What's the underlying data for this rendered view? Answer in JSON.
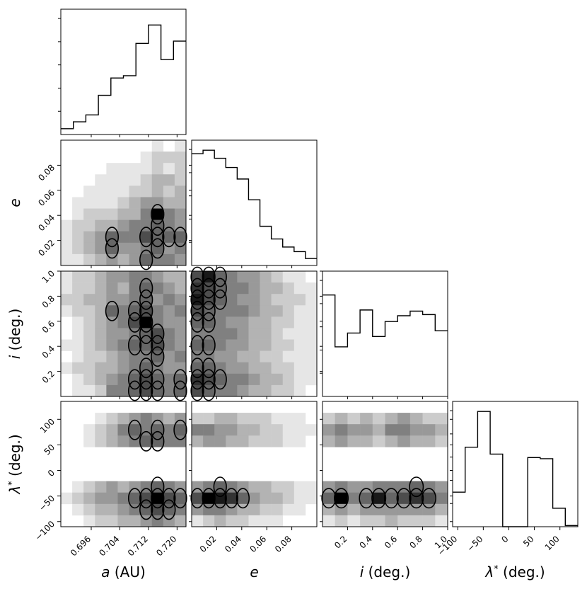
{
  "chart_data": {
    "type": "corner",
    "variables": [
      {
        "key": "a",
        "label_symbol": "a",
        "label_unit": "(AU)",
        "range": [
          0.6875,
          0.7225
        ],
        "ticks": [
          0.696,
          0.704,
          0.712,
          0.72
        ],
        "tick_labels": [
          "0.696",
          "0.704",
          "0.712",
          "0.720"
        ]
      },
      {
        "key": "e",
        "label_symbol": "e",
        "label_unit": "",
        "range": [
          0.0,
          0.1
        ],
        "ticks": [
          0.02,
          0.04,
          0.06,
          0.08
        ],
        "tick_labels": [
          "0.02",
          "0.04",
          "0.06",
          "0.08"
        ]
      },
      {
        "key": "i",
        "label_symbol": "i",
        "label_unit": "(deg.)",
        "range": [
          0.0,
          1.0
        ],
        "ticks": [
          0.2,
          0.4,
          0.6,
          0.8,
          1.0
        ],
        "tick_labels": [
          "0.2",
          "0.4",
          "0.6",
          "0.8",
          "1.0"
        ]
      },
      {
        "key": "lambda",
        "label_symbol": "λ",
        "label_sup": "*",
        "label_unit": "(deg.)",
        "range": [
          -110,
          135
        ],
        "ticks": [
          -100,
          -50,
          0,
          50,
          100
        ],
        "tick_labels": [
          "−100",
          "−50",
          "0",
          "50",
          "100"
        ]
      }
    ],
    "histograms": {
      "a": [
        0.05,
        0.11,
        0.17,
        0.34,
        0.49,
        0.51,
        0.79,
        0.95,
        0.65,
        0.81
      ],
      "e": [
        0.97,
        1.0,
        0.93,
        0.85,
        0.75,
        0.57,
        0.34,
        0.23,
        0.16,
        0.12,
        0.06
      ],
      "i": [
        0.88,
        0.43,
        0.55,
        0.75,
        0.52,
        0.65,
        0.7,
        0.74,
        0.71,
        0.57
      ],
      "lambda": [
        0.3,
        0.69,
        1.0,
        0.63,
        0.0,
        0.0,
        0.6,
        0.59,
        0.16,
        0.01
      ]
    },
    "density_panels": [
      {
        "x": "a",
        "y": "e",
        "nx": 11,
        "ny": 11,
        "density": [
          [
            0.0,
            0.0,
            0.0,
            0.0,
            0.0,
            0.0,
            0.0,
            0.0,
            0.1,
            0.0,
            0.1
          ],
          [
            0.0,
            0.0,
            0.0,
            0.0,
            0.0,
            0.0,
            0.0,
            0.1,
            0.2,
            0.2,
            0.2
          ],
          [
            0.0,
            0.0,
            0.0,
            0.0,
            0.1,
            0.1,
            0.1,
            0.1,
            0.2,
            0.1,
            0.2
          ],
          [
            0.0,
            0.0,
            0.0,
            0.1,
            0.1,
            0.1,
            0.1,
            0.2,
            0.3,
            0.3,
            0.2
          ],
          [
            0.0,
            0.0,
            0.1,
            0.1,
            0.1,
            0.1,
            0.2,
            0.2,
            0.3,
            0.2,
            0.3
          ],
          [
            0.0,
            0.1,
            0.1,
            0.1,
            0.1,
            0.2,
            0.3,
            0.4,
            0.4,
            0.3,
            0.3
          ],
          [
            0.0,
            0.1,
            0.2,
            0.2,
            0.2,
            0.3,
            0.3,
            0.5,
            1.0,
            0.5,
            0.4
          ],
          [
            0.1,
            0.2,
            0.2,
            0.3,
            0.3,
            0.4,
            0.5,
            0.5,
            0.6,
            0.5,
            0.4
          ],
          [
            0.1,
            0.2,
            0.3,
            0.4,
            0.6,
            0.5,
            0.5,
            0.7,
            0.6,
            0.6,
            0.6
          ],
          [
            0.1,
            0.2,
            0.3,
            0.4,
            0.6,
            0.4,
            0.4,
            0.5,
            0.6,
            0.4,
            0.5
          ],
          [
            0.1,
            0.1,
            0.2,
            0.3,
            0.4,
            0.3,
            0.4,
            0.6,
            0.5,
            0.5,
            0.4
          ]
        ]
      },
      {
        "x": "a",
        "y": "i",
        "nx": 11,
        "ny": 11,
        "density": [
          [
            0.1,
            0.2,
            0.2,
            0.3,
            0.4,
            0.4,
            0.5,
            0.5,
            0.4,
            0.3,
            0.3
          ],
          [
            0.1,
            0.2,
            0.2,
            0.3,
            0.4,
            0.3,
            0.5,
            0.6,
            0.5,
            0.4,
            0.3
          ],
          [
            0.2,
            0.2,
            0.3,
            0.3,
            0.4,
            0.4,
            0.5,
            0.6,
            0.4,
            0.5,
            0.4
          ],
          [
            0.1,
            0.2,
            0.2,
            0.3,
            0.6,
            0.5,
            0.6,
            0.7,
            0.5,
            0.4,
            0.5
          ],
          [
            0.0,
            0.1,
            0.2,
            0.3,
            0.4,
            0.5,
            0.7,
            1.0,
            0.5,
            0.4,
            0.4
          ],
          [
            0.0,
            0.1,
            0.2,
            0.3,
            0.4,
            0.4,
            0.5,
            0.6,
            0.7,
            0.5,
            0.4
          ],
          [
            0.1,
            0.1,
            0.2,
            0.3,
            0.4,
            0.5,
            0.6,
            0.6,
            0.7,
            0.5,
            0.4
          ],
          [
            0.0,
            0.1,
            0.2,
            0.2,
            0.3,
            0.4,
            0.5,
            0.5,
            0.6,
            0.4,
            0.5
          ],
          [
            0.1,
            0.2,
            0.2,
            0.3,
            0.3,
            0.4,
            0.5,
            0.6,
            0.5,
            0.4,
            0.4
          ],
          [
            0.0,
            0.1,
            0.2,
            0.3,
            0.4,
            0.5,
            0.6,
            0.7,
            0.6,
            0.5,
            0.6
          ],
          [
            0.0,
            0.1,
            0.1,
            0.2,
            0.5,
            0.5,
            0.6,
            0.7,
            0.6,
            0.5,
            0.6
          ]
        ]
      },
      {
        "x": "a",
        "y": "lambda",
        "nx": 11,
        "ny": 11,
        "density": [
          [
            0.0,
            0.0,
            0.0,
            0.0,
            0.0,
            0.0,
            0.0,
            0.0,
            0.0,
            0.0,
            0.0
          ],
          [
            0.0,
            0.0,
            0.0,
            0.1,
            0.2,
            0.3,
            0.4,
            0.5,
            0.4,
            0.3,
            0.4
          ],
          [
            0.0,
            0.0,
            0.1,
            0.2,
            0.3,
            0.5,
            0.6,
            0.5,
            0.6,
            0.5,
            0.6
          ],
          [
            0.0,
            0.0,
            0.1,
            0.2,
            0.3,
            0.4,
            0.5,
            0.6,
            0.6,
            0.5,
            0.5
          ],
          [
            0.0,
            0.0,
            0.0,
            0.0,
            0.0,
            0.0,
            0.0,
            0.0,
            0.0,
            0.0,
            0.0
          ],
          [
            0.0,
            0.0,
            0.0,
            0.0,
            0.0,
            0.0,
            0.0,
            0.0,
            0.0,
            0.0,
            0.0
          ],
          [
            0.0,
            0.0,
            0.0,
            0.0,
            0.0,
            0.0,
            0.0,
            0.0,
            0.0,
            0.0,
            0.0
          ],
          [
            0.0,
            0.1,
            0.2,
            0.3,
            0.4,
            0.3,
            0.4,
            0.5,
            0.6,
            0.5,
            0.4
          ],
          [
            0.1,
            0.2,
            0.3,
            0.4,
            0.4,
            0.5,
            0.6,
            0.7,
            1.0,
            0.7,
            0.6
          ],
          [
            0.0,
            0.1,
            0.2,
            0.3,
            0.3,
            0.4,
            0.5,
            0.6,
            0.7,
            0.6,
            0.5
          ],
          [
            0.0,
            0.0,
            0.1,
            0.2,
            0.2,
            0.3,
            0.3,
            0.4,
            0.5,
            0.4,
            0.3
          ]
        ]
      },
      {
        "x": "e",
        "y": "i",
        "nx": 11,
        "ny": 11,
        "density": [
          [
            0.7,
            0.9,
            0.6,
            0.5,
            0.4,
            0.4,
            0.3,
            0.2,
            0.1,
            0.1,
            0.0
          ],
          [
            0.8,
            0.7,
            0.6,
            0.5,
            0.5,
            0.4,
            0.3,
            0.3,
            0.2,
            0.1,
            0.1
          ],
          [
            0.9,
            0.7,
            0.6,
            0.5,
            0.4,
            0.4,
            0.3,
            0.2,
            0.2,
            0.2,
            0.1
          ],
          [
            0.7,
            0.6,
            0.5,
            0.5,
            0.5,
            0.4,
            0.3,
            0.3,
            0.2,
            0.1,
            0.1
          ],
          [
            0.6,
            0.6,
            0.5,
            0.4,
            0.4,
            0.3,
            0.3,
            0.2,
            0.2,
            0.1,
            0.1
          ],
          [
            0.5,
            0.5,
            0.5,
            0.5,
            0.4,
            0.3,
            0.3,
            0.2,
            0.1,
            0.1,
            0.1
          ],
          [
            0.6,
            0.6,
            0.5,
            0.4,
            0.4,
            0.3,
            0.3,
            0.2,
            0.2,
            0.1,
            0.1
          ],
          [
            0.5,
            0.5,
            0.4,
            0.4,
            0.3,
            0.3,
            0.2,
            0.2,
            0.1,
            0.1,
            0.1
          ],
          [
            0.6,
            0.6,
            0.5,
            0.4,
            0.4,
            0.3,
            0.3,
            0.2,
            0.2,
            0.1,
            0.1
          ],
          [
            0.8,
            0.7,
            0.6,
            0.5,
            0.5,
            0.4,
            0.3,
            0.3,
            0.2,
            0.1,
            0.1
          ],
          [
            0.7,
            0.6,
            0.5,
            0.5,
            0.4,
            0.3,
            0.3,
            0.2,
            0.2,
            0.1,
            0.0
          ]
        ]
      },
      {
        "x": "e",
        "y": "lambda",
        "nx": 11,
        "ny": 11,
        "density": [
          [
            0.0,
            0.0,
            0.0,
            0.0,
            0.0,
            0.0,
            0.0,
            0.0,
            0.0,
            0.0,
            0.0
          ],
          [
            0.2,
            0.2,
            0.3,
            0.3,
            0.2,
            0.2,
            0.2,
            0.1,
            0.1,
            0.1,
            0.0
          ],
          [
            0.5,
            0.5,
            0.4,
            0.4,
            0.3,
            0.3,
            0.2,
            0.2,
            0.1,
            0.1,
            0.1
          ],
          [
            0.3,
            0.4,
            0.4,
            0.3,
            0.3,
            0.2,
            0.2,
            0.2,
            0.1,
            0.1,
            0.0
          ],
          [
            0.0,
            0.0,
            0.0,
            0.0,
            0.0,
            0.0,
            0.0,
            0.0,
            0.0,
            0.0,
            0.0
          ],
          [
            0.0,
            0.0,
            0.0,
            0.0,
            0.0,
            0.0,
            0.0,
            0.0,
            0.0,
            0.0,
            0.0
          ],
          [
            0.0,
            0.0,
            0.0,
            0.0,
            0.0,
            0.0,
            0.0,
            0.0,
            0.0,
            0.0,
            0.0
          ],
          [
            0.4,
            0.5,
            0.6,
            0.5,
            0.4,
            0.3,
            0.3,
            0.2,
            0.2,
            0.1,
            0.1
          ],
          [
            0.7,
            1.0,
            0.9,
            0.8,
            0.6,
            0.4,
            0.3,
            0.3,
            0.2,
            0.1,
            0.1
          ],
          [
            0.4,
            0.5,
            0.5,
            0.4,
            0.3,
            0.3,
            0.2,
            0.2,
            0.1,
            0.1,
            0.0
          ],
          [
            0.1,
            0.2,
            0.3,
            0.2,
            0.2,
            0.1,
            0.1,
            0.1,
            0.0,
            0.0,
            0.0
          ]
        ]
      },
      {
        "x": "i",
        "y": "lambda",
        "nx": 10,
        "ny": 11,
        "density": [
          [
            0.0,
            0.0,
            0.0,
            0.0,
            0.0,
            0.0,
            0.0,
            0.0,
            0.0,
            0.0
          ],
          [
            0.2,
            0.3,
            0.2,
            0.3,
            0.2,
            0.3,
            0.4,
            0.3,
            0.2,
            0.2
          ],
          [
            0.4,
            0.5,
            0.4,
            0.4,
            0.3,
            0.5,
            0.5,
            0.4,
            0.4,
            0.3
          ],
          [
            0.3,
            0.4,
            0.3,
            0.3,
            0.2,
            0.3,
            0.4,
            0.3,
            0.3,
            0.2
          ],
          [
            0.0,
            0.0,
            0.0,
            0.0,
            0.0,
            0.0,
            0.0,
            0.0,
            0.0,
            0.0
          ],
          [
            0.0,
            0.0,
            0.0,
            0.0,
            0.0,
            0.0,
            0.0,
            0.0,
            0.0,
            0.0
          ],
          [
            0.0,
            0.0,
            0.0,
            0.0,
            0.0,
            0.0,
            0.0,
            0.0,
            0.0,
            0.0
          ],
          [
            0.4,
            0.5,
            0.4,
            0.4,
            0.5,
            0.5,
            0.5,
            0.6,
            0.5,
            0.4
          ],
          [
            0.6,
            1.0,
            0.5,
            0.6,
            0.9,
            0.6,
            0.7,
            0.8,
            0.7,
            0.5
          ],
          [
            0.3,
            0.4,
            0.3,
            0.4,
            0.4,
            0.4,
            0.4,
            0.4,
            0.4,
            0.3
          ],
          [
            0.1,
            0.2,
            0.1,
            0.2,
            0.2,
            0.3,
            0.2,
            0.2,
            0.2,
            0.1
          ]
        ]
      }
    ],
    "colors": {
      "hist_line": "#000000",
      "density_max": "#000000",
      "density_min": "#ffffff",
      "contour": "#000000"
    }
  }
}
